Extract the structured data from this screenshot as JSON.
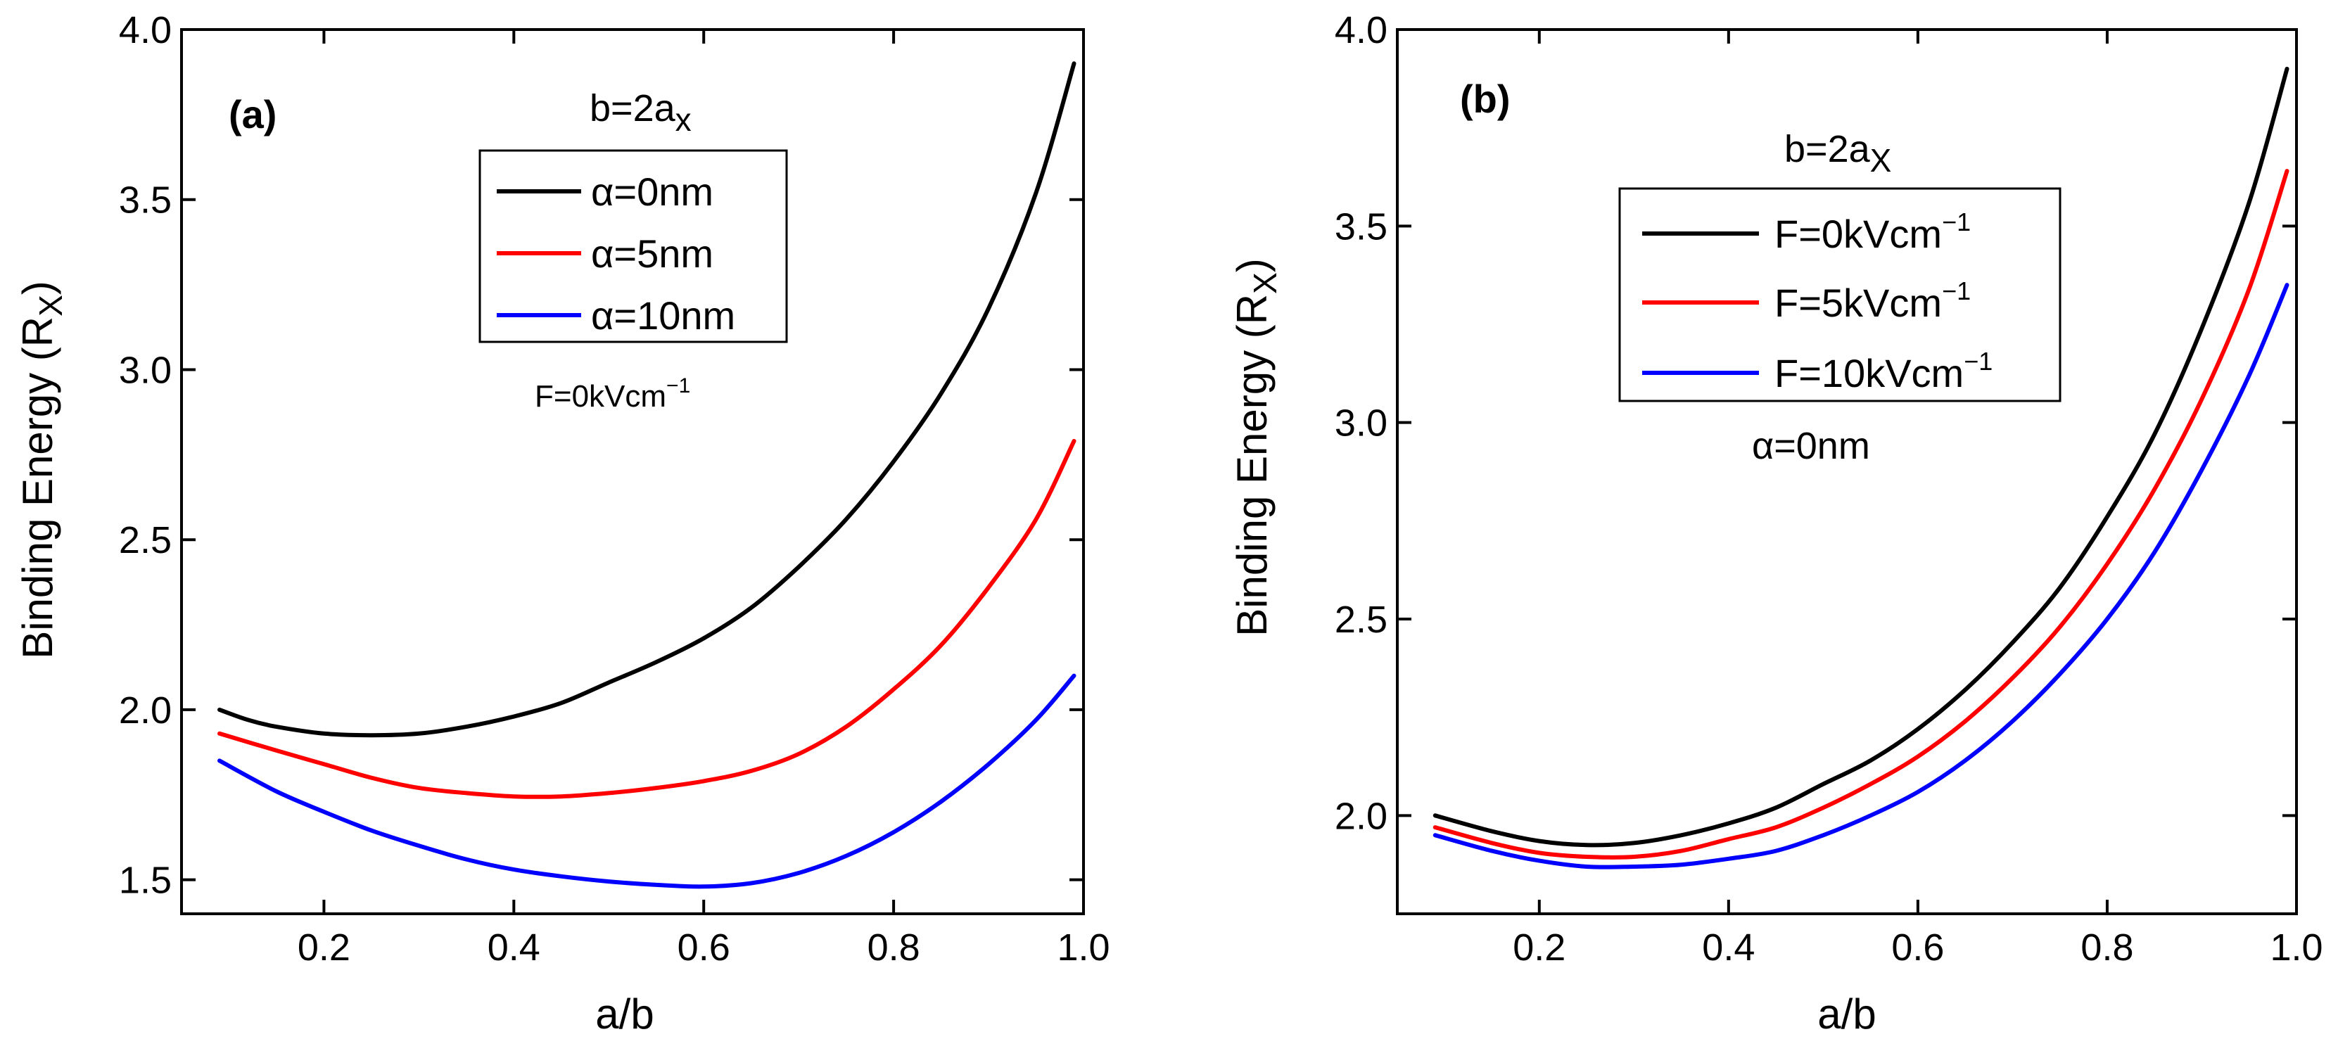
{
  "chart_data": [
    {
      "type": "line",
      "panel_label": "(a)",
      "xlabel": "a/b",
      "ylabel_main": "Binding Energy (R",
      "ylabel_sub": "X",
      "ylabel_close": ")",
      "xlim": [
        0.05,
        1.0
      ],
      "ylim": [
        1.4,
        4.0
      ],
      "xticks": [
        0.2,
        0.4,
        0.6,
        0.8,
        1.0
      ],
      "xtick_labels": [
        "0.2",
        "0.4",
        "0.6",
        "0.8",
        "1.0"
      ],
      "yticks": [
        1.5,
        2.0,
        2.5,
        3.0,
        3.5,
        4.0
      ],
      "ytick_labels": [
        "1.5",
        "2.0",
        "2.5",
        "3.0",
        "3.5",
        "4.0"
      ],
      "annotations": {
        "b_main": "b=2a",
        "b_sub": "x",
        "f_main": "F=0kVcm",
        "f_sup": "−1"
      },
      "legend_position": "top-center",
      "series": [
        {
          "name": "α=0nm",
          "color": "#000000",
          "x": [
            0.09,
            0.12,
            0.15,
            0.2,
            0.25,
            0.3,
            0.35,
            0.4,
            0.45,
            0.5,
            0.55,
            0.6,
            0.65,
            0.7,
            0.75,
            0.8,
            0.85,
            0.9,
            0.95,
            0.99
          ],
          "y": [
            2.0,
            1.97,
            1.95,
            1.93,
            1.925,
            1.93,
            1.95,
            1.98,
            2.02,
            2.08,
            2.14,
            2.21,
            2.3,
            2.42,
            2.56,
            2.73,
            2.93,
            3.18,
            3.52,
            3.9
          ]
        },
        {
          "name": "α=5nm",
          "color": "#ff0000",
          "x": [
            0.09,
            0.15,
            0.2,
            0.25,
            0.3,
            0.35,
            0.4,
            0.45,
            0.5,
            0.55,
            0.6,
            0.65,
            0.7,
            0.75,
            0.8,
            0.85,
            0.9,
            0.95,
            0.99
          ],
          "y": [
            1.93,
            1.88,
            1.84,
            1.8,
            1.77,
            1.755,
            1.745,
            1.745,
            1.755,
            1.77,
            1.79,
            1.82,
            1.87,
            1.95,
            2.06,
            2.19,
            2.36,
            2.56,
            2.79
          ]
        },
        {
          "name": "α=10nm",
          "color": "#0000ff",
          "x": [
            0.09,
            0.15,
            0.2,
            0.25,
            0.3,
            0.35,
            0.4,
            0.45,
            0.5,
            0.55,
            0.6,
            0.65,
            0.7,
            0.75,
            0.8,
            0.85,
            0.9,
            0.95,
            0.99
          ],
          "y": [
            1.85,
            1.76,
            1.7,
            1.645,
            1.6,
            1.56,
            1.53,
            1.51,
            1.495,
            1.485,
            1.48,
            1.49,
            1.52,
            1.57,
            1.64,
            1.73,
            1.84,
            1.97,
            2.1
          ]
        }
      ]
    },
    {
      "type": "line",
      "panel_label": "(b)",
      "xlabel": "a/b",
      "ylabel_main": "Binding Energy (R",
      "ylabel_sub": "X",
      "ylabel_close": ")",
      "xlim": [
        0.05,
        1.0
      ],
      "ylim": [
        1.75,
        4.0
      ],
      "xticks": [
        0.2,
        0.4,
        0.6,
        0.8,
        1.0
      ],
      "xtick_labels": [
        "0.2",
        "0.4",
        "0.6",
        "0.8",
        "1.0"
      ],
      "yticks": [
        2.0,
        2.5,
        3.0,
        3.5,
        4.0
      ],
      "ytick_labels": [
        "2.0",
        "2.5",
        "3.0",
        "3.5",
        "4.0"
      ],
      "annotations": {
        "b_main": "b=2a",
        "b_sub": "X",
        "alpha": "α=0nm"
      },
      "legend_position": "top-center",
      "series": [
        {
          "name_main": "F=0kVcm",
          "name_sup": "−1",
          "color": "#000000",
          "x": [
            0.09,
            0.15,
            0.2,
            0.25,
            0.3,
            0.35,
            0.4,
            0.45,
            0.5,
            0.55,
            0.6,
            0.65,
            0.7,
            0.75,
            0.8,
            0.85,
            0.9,
            0.95,
            0.99
          ],
          "y": [
            2.0,
            1.96,
            1.935,
            1.925,
            1.93,
            1.95,
            1.98,
            2.02,
            2.08,
            2.14,
            2.22,
            2.32,
            2.44,
            2.58,
            2.76,
            2.97,
            3.24,
            3.56,
            3.9
          ]
        },
        {
          "name_main": "F=5kVcm",
          "name_sup": "−1",
          "color": "#ff0000",
          "x": [
            0.09,
            0.15,
            0.2,
            0.25,
            0.3,
            0.35,
            0.4,
            0.45,
            0.5,
            0.55,
            0.6,
            0.65,
            0.7,
            0.75,
            0.8,
            0.85,
            0.9,
            0.95,
            0.99
          ],
          "y": [
            1.97,
            1.93,
            1.905,
            1.895,
            1.895,
            1.91,
            1.94,
            1.97,
            2.02,
            2.08,
            2.15,
            2.24,
            2.35,
            2.48,
            2.64,
            2.83,
            3.06,
            3.34,
            3.64
          ]
        },
        {
          "name_main": "F=10kVcm",
          "name_sup": "−1",
          "color": "#0000ff",
          "x": [
            0.09,
            0.15,
            0.2,
            0.25,
            0.3,
            0.35,
            0.4,
            0.45,
            0.5,
            0.55,
            0.6,
            0.65,
            0.7,
            0.75,
            0.8,
            0.85,
            0.9,
            0.95,
            0.99
          ],
          "y": [
            1.95,
            1.91,
            1.885,
            1.87,
            1.87,
            1.875,
            1.89,
            1.91,
            1.95,
            2.0,
            2.06,
            2.14,
            2.24,
            2.36,
            2.5,
            2.67,
            2.88,
            3.12,
            3.35
          ]
        }
      ]
    }
  ]
}
